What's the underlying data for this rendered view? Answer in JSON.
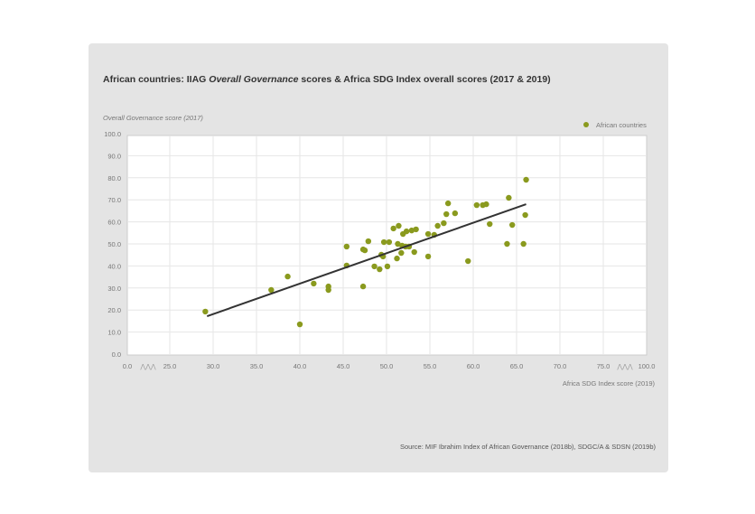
{
  "chart_data": {
    "type": "scatter",
    "title_prefix": "African countries: IIAG ",
    "title_italic": "Overall Governance",
    "title_suffix": " scores & Africa SDG Index overall scores (2017 & 2019)",
    "ylabel": "Overall Governance score (2017)",
    "xlabel": "Africa SDG Index score (2019)",
    "legend": {
      "label": "African countries",
      "placement": "top-right"
    },
    "x_ticks": [
      "0.0",
      "25.0",
      "30.0",
      "35.0",
      "40.0",
      "45.0",
      "50.0",
      "55.0",
      "60.0",
      "65.0",
      "70.0",
      "75.0",
      "100.0"
    ],
    "x_tick_values": [
      0,
      25,
      30,
      35,
      40,
      45,
      50,
      55,
      60,
      65,
      70,
      75,
      100
    ],
    "x_axis_breaks": [
      "0-25",
      "75-100"
    ],
    "y_ticks": [
      "0.0",
      "10.0",
      "20.0",
      "30.0",
      "40.0",
      "50.0",
      "60.0",
      "70.0",
      "80.0",
      "90.0",
      "100.0"
    ],
    "ylim": [
      0,
      100
    ],
    "grid": true,
    "point_color": "#8a9a1e",
    "series": [
      {
        "name": "African countries",
        "points": [
          [
            29.1,
            19.3
          ],
          [
            36.7,
            29.1
          ],
          [
            38.6,
            35.2
          ],
          [
            40.0,
            13.5
          ],
          [
            41.6,
            32.0
          ],
          [
            43.3,
            29.1
          ],
          [
            43.3,
            30.7
          ],
          [
            45.4,
            48.8
          ],
          [
            45.4,
            40.2
          ],
          [
            47.3,
            47.5
          ],
          [
            47.5,
            47.1
          ],
          [
            47.3,
            30.7
          ],
          [
            47.9,
            51.2
          ],
          [
            48.6,
            39.8
          ],
          [
            49.2,
            38.5
          ],
          [
            49.4,
            45.1
          ],
          [
            49.6,
            44.3
          ],
          [
            49.7,
            50.8
          ],
          [
            50.1,
            39.8
          ],
          [
            50.3,
            50.8
          ],
          [
            50.8,
            57.0
          ],
          [
            51.2,
            43.4
          ],
          [
            51.3,
            50.0
          ],
          [
            51.4,
            58.2
          ],
          [
            51.7,
            45.9
          ],
          [
            51.8,
            49.2
          ],
          [
            51.9,
            54.5
          ],
          [
            52.3,
            55.7
          ],
          [
            52.2,
            48.8
          ],
          [
            52.6,
            48.8
          ],
          [
            52.9,
            56.1
          ],
          [
            53.2,
            46.3
          ],
          [
            53.4,
            56.6
          ],
          [
            54.8,
            54.5
          ],
          [
            54.8,
            44.3
          ],
          [
            55.5,
            54.1
          ],
          [
            55.9,
            58.2
          ],
          [
            56.6,
            59.4
          ],
          [
            56.9,
            63.5
          ],
          [
            57.1,
            68.4
          ],
          [
            57.9,
            63.9
          ],
          [
            59.4,
            42.2
          ],
          [
            60.4,
            67.6
          ],
          [
            61.1,
            67.6
          ],
          [
            61.5,
            68.0
          ],
          [
            61.9,
            59.0
          ],
          [
            63.9,
            50.0
          ],
          [
            64.1,
            70.9
          ],
          [
            64.5,
            58.6
          ],
          [
            65.8,
            50.0
          ],
          [
            66.0,
            63.1
          ],
          [
            66.1,
            79.1
          ]
        ]
      }
    ],
    "trendline": [
      [
        29.3,
        17.2
      ],
      [
        66.1,
        68.0
      ]
    ],
    "source": "Source: MIF Ibrahim Index of African Governance (2018b), SDGC/A & SDSN (2019b)"
  }
}
